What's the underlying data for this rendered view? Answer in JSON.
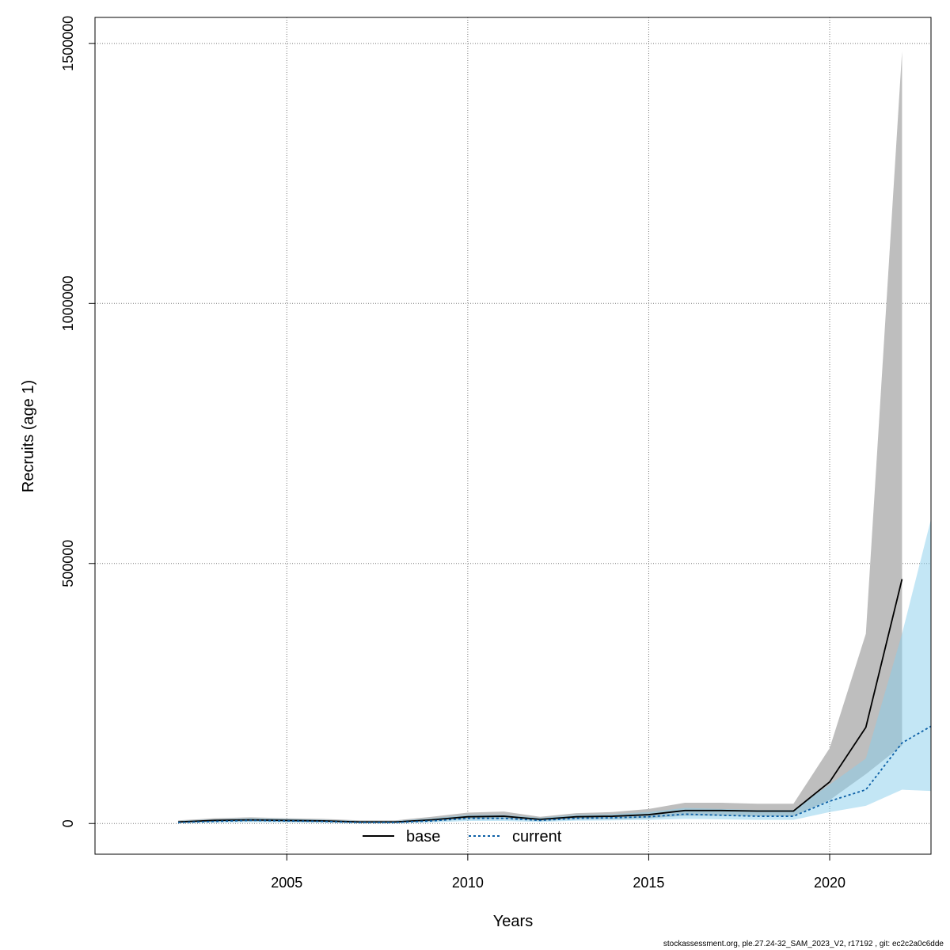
{
  "chart_data": {
    "type": "area",
    "title": "",
    "xlabel": "Years",
    "ylabel": "Recruits (age 1)",
    "xlim": [
      1999.7,
      2022.8
    ],
    "ylim": [
      -59000,
      1550000
    ],
    "x_ticks": [
      2005,
      2010,
      2015,
      2020
    ],
    "y_ticks": [
      0,
      500000,
      1000000,
      1500000
    ],
    "y_tick_labels": [
      "0",
      "500000",
      "1000000",
      "1500000"
    ],
    "grid": true,
    "legend_position": "bottom-center",
    "series": [
      {
        "name": "base",
        "line_style": "solid",
        "line_color": "#000000",
        "band_color": "#bebebe",
        "x": [
          2002,
          2003,
          2004,
          2005,
          2006,
          2007,
          2008,
          2009,
          2010,
          2011,
          2012,
          2013,
          2014,
          2015,
          2016,
          2017,
          2018,
          2019,
          2020,
          2021,
          2022
        ],
        "values": [
          3000,
          6000,
          7000,
          6000,
          5000,
          3000,
          3000,
          7000,
          13000,
          14000,
          8000,
          13000,
          14000,
          17000,
          25000,
          25000,
          24000,
          24000,
          80000,
          185000,
          470000
        ],
        "lower": [
          1500,
          3500,
          4000,
          3500,
          3000,
          1500,
          1500,
          4000,
          8000,
          8500,
          5000,
          8000,
          8500,
          10000,
          15000,
          15000,
          14000,
          14000,
          45000,
          95000,
          150000
        ],
        "upper": [
          6000,
          10000,
          12000,
          10000,
          9000,
          6000,
          6000,
          13000,
          21000,
          23000,
          13000,
          20000,
          22000,
          28000,
          40000,
          40000,
          38000,
          38000,
          145000,
          365000,
          1485000
        ]
      },
      {
        "name": "current",
        "line_style": "dotted",
        "line_color": "#0b5fa6",
        "band_color": "#87ceeb",
        "x": [
          2002,
          2003,
          2004,
          2005,
          2006,
          2007,
          2008,
          2009,
          2010,
          2011,
          2012,
          2013,
          2014,
          2015,
          2016,
          2017,
          2018,
          2019,
          2020,
          2021,
          2022,
          2023
        ],
        "values": [
          2000,
          4000,
          6000,
          5000,
          4000,
          2000,
          2000,
          5000,
          10000,
          10000,
          6000,
          10000,
          11000,
          13000,
          18000,
          16000,
          14000,
          14000,
          43000,
          65000,
          155000,
          195000
        ],
        "lower": [
          500,
          1500,
          2500,
          2000,
          1500,
          500,
          500,
          2000,
          5000,
          5000,
          3000,
          5500,
          6000,
          7000,
          9000,
          8000,
          7000,
          7000,
          22000,
          34000,
          65000,
          62000
        ],
        "upper": [
          5000,
          8000,
          10000,
          9000,
          7000,
          5000,
          5000,
          10000,
          17000,
          17000,
          11000,
          17000,
          18000,
          22000,
          30000,
          28000,
          26000,
          26000,
          75000,
          125000,
          365000,
          640000
        ]
      }
    ]
  },
  "footer": "stockassessment.org, ple.27.24-32_SAM_2023_V2, r17192 , git: ec2c2a0c6dde"
}
